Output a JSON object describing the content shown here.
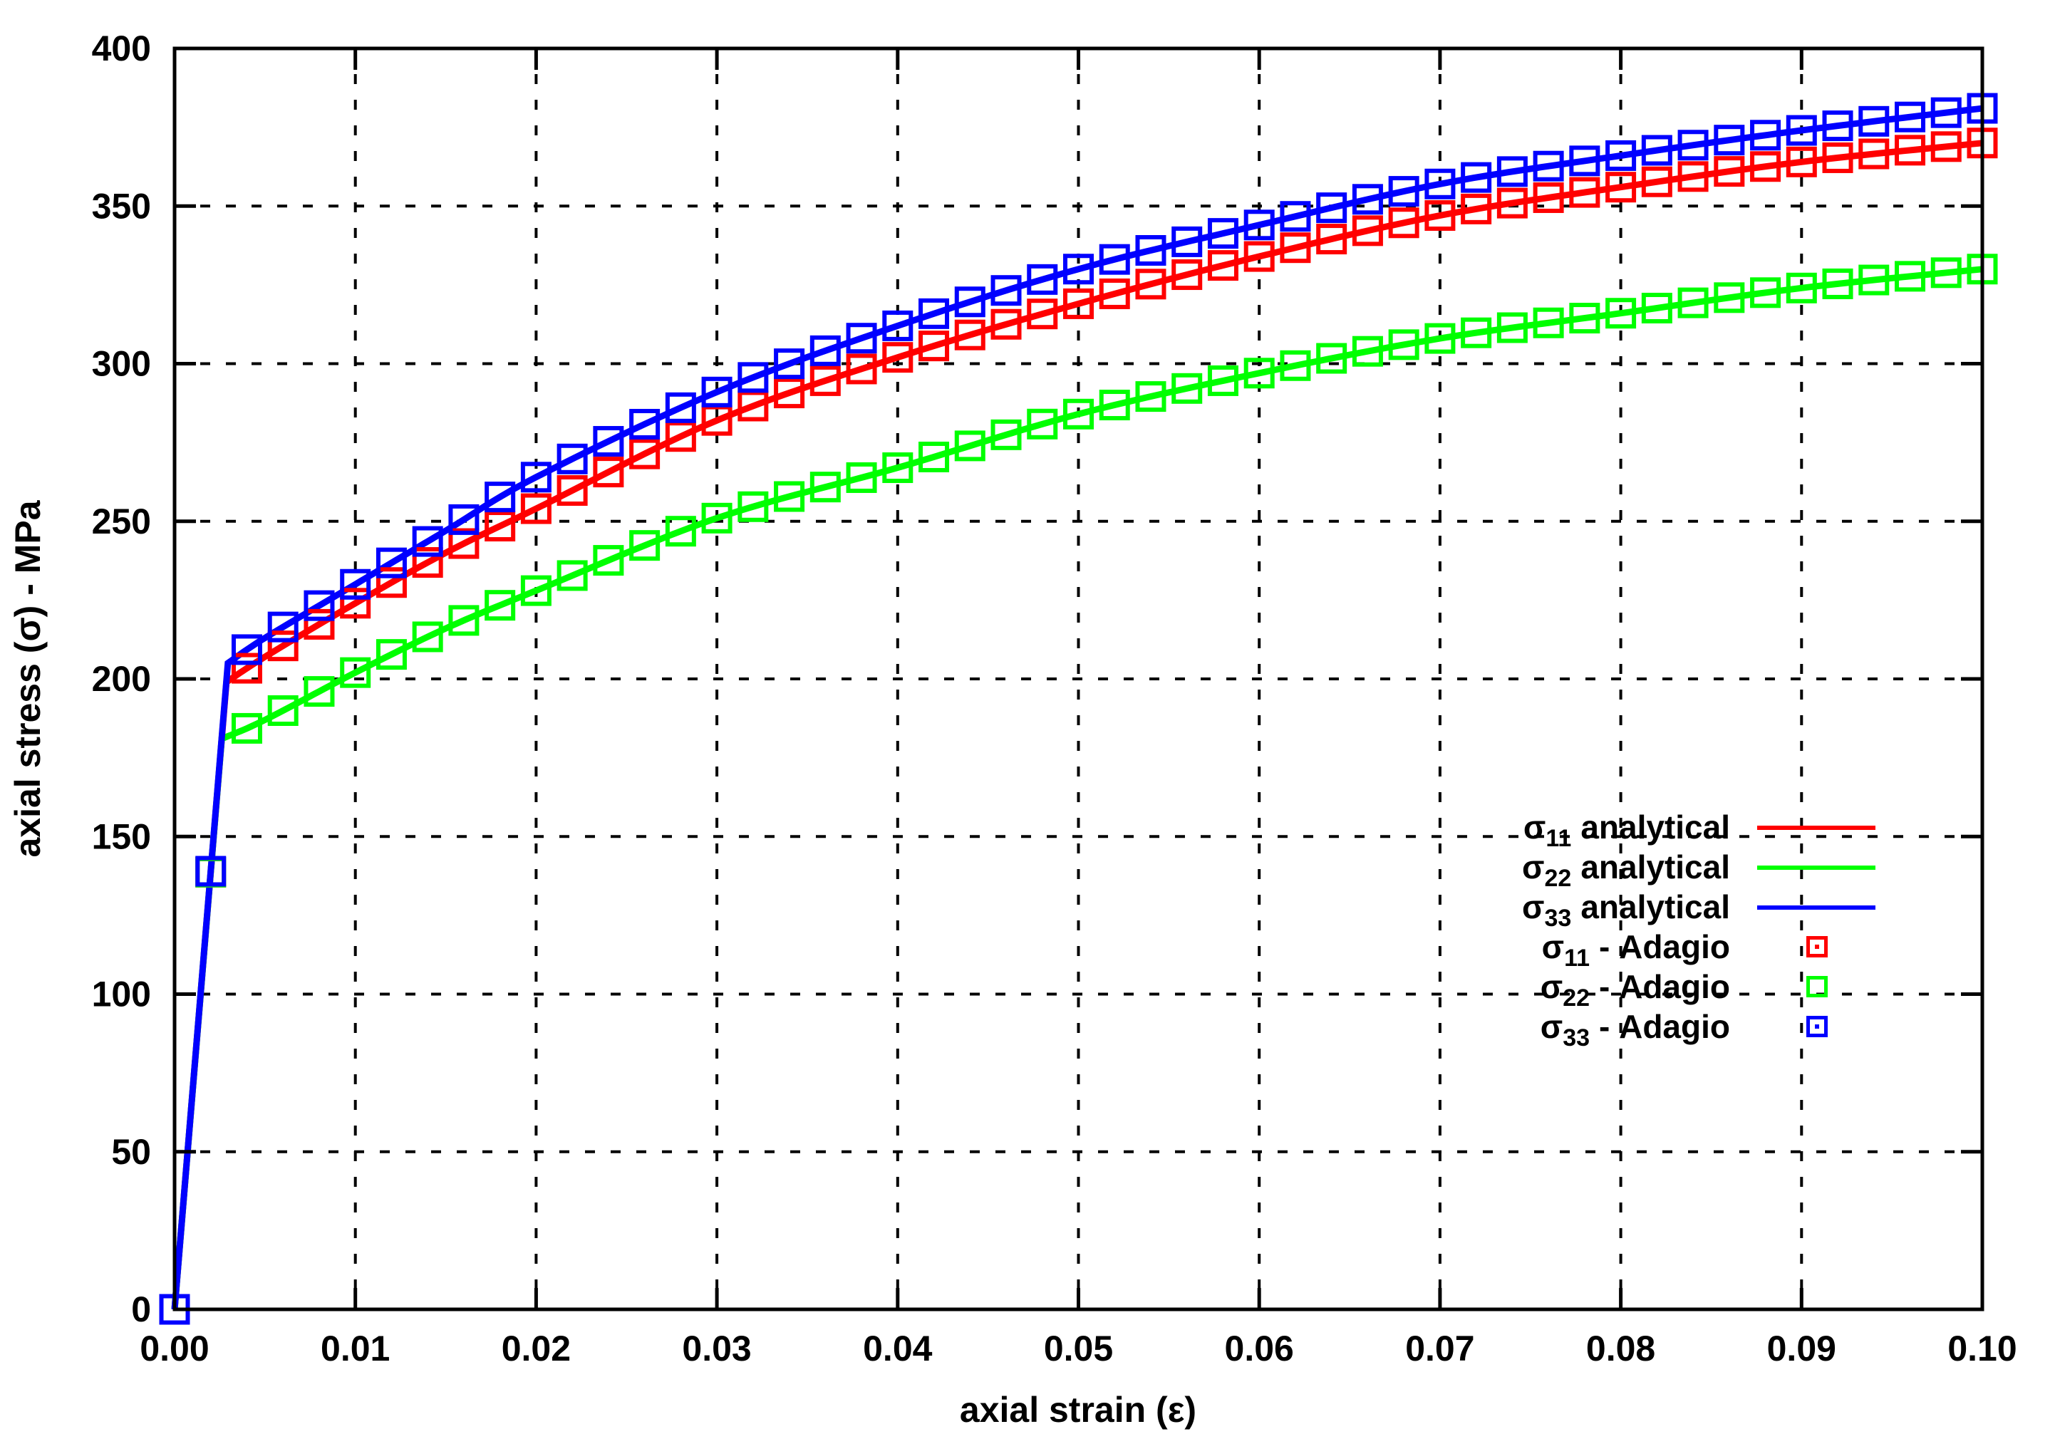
{
  "chart_data": {
    "type": "line",
    "title": "",
    "xlabel": "axial strain (ε)",
    "ylabel": "axial stress (σ) - MPa",
    "xlim": [
      0.0,
      0.1
    ],
    "ylim": [
      0,
      400
    ],
    "x_ticks": [
      0.0,
      0.01,
      0.02,
      0.03,
      0.04,
      0.05,
      0.06,
      0.07,
      0.08,
      0.09,
      0.1
    ],
    "x_tick_labels": [
      "0.00",
      "0.01",
      "0.02",
      "0.03",
      "0.04",
      "0.05",
      "0.06",
      "0.07",
      "0.08",
      "0.09",
      "0.10"
    ],
    "y_ticks": [
      0,
      50,
      100,
      150,
      200,
      250,
      300,
      350,
      400
    ],
    "y_tick_labels": [
      "0",
      "50",
      "100",
      "150",
      "200",
      "250",
      "300",
      "350",
      "400"
    ],
    "grid": true,
    "grid_style": "dashed-black",
    "legend_position": "inside-right-center",
    "background_color": "#ffffff",
    "axis_color": "#000000",
    "markers": {
      "step": 0.002,
      "range": [
        0.0,
        0.1
      ],
      "shape": "open-square",
      "source": "Adagio simulation sampled on the analytical curves"
    },
    "series": [
      {
        "name": "σ11 analytical",
        "adagio_name": "σ11 - Adagio",
        "color": "#ff0000",
        "strain": [
          0,
          0.00287,
          0.005,
          0.01,
          0.015,
          0.02,
          0.03,
          0.04,
          0.05,
          0.06,
          0.07,
          0.08,
          0.09,
          0.1
        ],
        "stress": [
          0,
          199,
          207,
          224,
          240,
          254,
          282,
          302,
          319,
          334,
          347,
          356,
          364,
          370
        ]
      },
      {
        "name": "σ22 analytical",
        "adagio_name": "σ22 - Adagio",
        "color": "#00ff00",
        "strain": [
          0,
          0.00261,
          0.005,
          0.01,
          0.015,
          0.02,
          0.03,
          0.04,
          0.05,
          0.06,
          0.07,
          0.08,
          0.09,
          0.1
        ],
        "stress": [
          0,
          181,
          187,
          202,
          216,
          228,
          251,
          267,
          284,
          297,
          308,
          316,
          324,
          330
        ]
      },
      {
        "name": "σ33 analytical",
        "adagio_name": "σ33 - Adagio",
        "color": "#0000ff",
        "strain": [
          0,
          0.00295,
          0.005,
          0.01,
          0.015,
          0.02,
          0.03,
          0.04,
          0.05,
          0.06,
          0.07,
          0.08,
          0.09,
          0.1
        ],
        "stress": [
          0,
          205,
          213,
          230,
          247,
          264,
          291,
          312,
          330,
          344,
          357,
          366,
          374,
          381
        ]
      }
    ]
  },
  "legend": {
    "entries": [
      {
        "sym": "σ",
        "sub": "11",
        "suffix": "analytical",
        "color": "#ff0000",
        "swatch": "line",
        "dot": false
      },
      {
        "sym": "σ",
        "sub": "22",
        "suffix": "analytical",
        "color": "#00ff00",
        "swatch": "line",
        "dot": false
      },
      {
        "sym": "σ",
        "sub": "33",
        "suffix": "analytical",
        "color": "#0000ff",
        "swatch": "line",
        "dot": false
      },
      {
        "sym": "σ",
        "sub": "11",
        "suffix": "- Adagio",
        "color": "#ff0000",
        "swatch": "marker",
        "dot": true
      },
      {
        "sym": "σ",
        "sub": "22",
        "suffix": "- Adagio",
        "color": "#00ff00",
        "swatch": "marker",
        "dot": false
      },
      {
        "sym": "σ",
        "sub": "33",
        "suffix": "- Adagio",
        "color": "#0000ff",
        "swatch": "marker",
        "dot": true
      }
    ]
  }
}
